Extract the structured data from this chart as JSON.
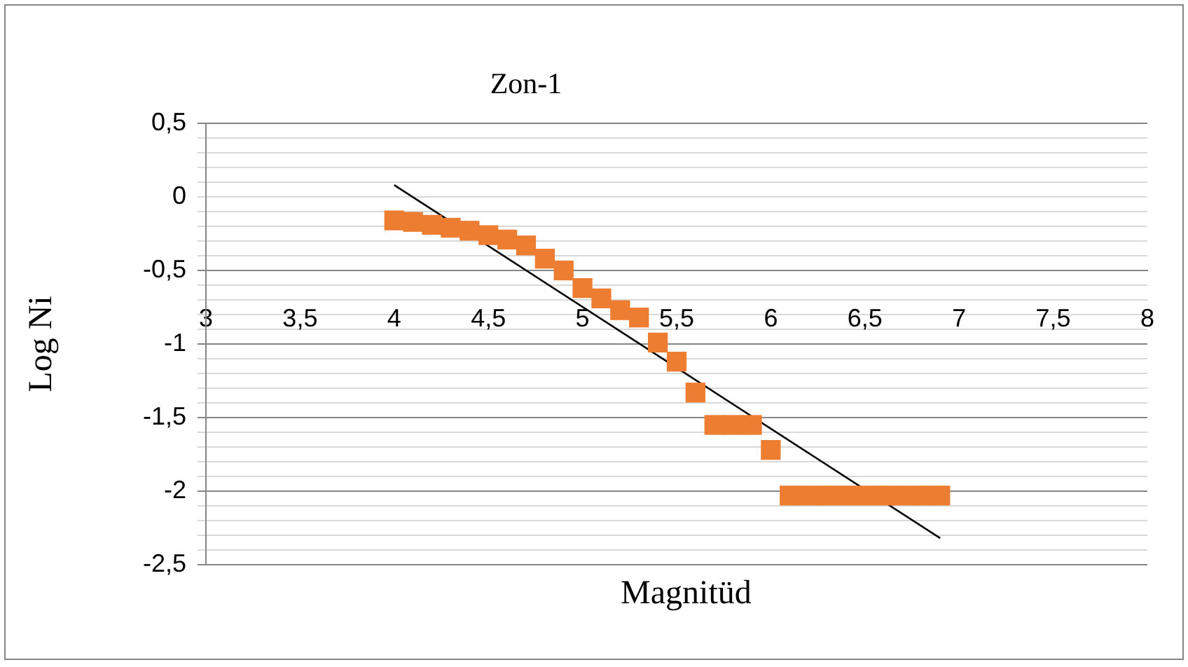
{
  "chart_data": {
    "type": "scatter",
    "title": "Zon-1",
    "xlabel": "Magnitüd",
    "ylabel": "Log Ni",
    "x": [
      4.0,
      4.1,
      4.2,
      4.3,
      4.4,
      4.5,
      4.6,
      4.7,
      4.8,
      4.9,
      5.0,
      5.1,
      5.2,
      5.3,
      5.4,
      5.5,
      5.6,
      5.7,
      5.8,
      5.9,
      6.0,
      6.1,
      6.2,
      6.3,
      6.4,
      6.5,
      6.6,
      6.7,
      6.8,
      6.9
    ],
    "series": [
      {
        "color": "#ed7d31",
        "values": [
          -0.16,
          -0.17,
          -0.19,
          -0.21,
          -0.23,
          -0.26,
          -0.29,
          -0.33,
          -0.42,
          -0.5,
          -0.62,
          -0.69,
          -0.77,
          -0.82,
          -0.99,
          -1.12,
          -1.33,
          -1.55,
          -1.55,
          -1.55,
          -1.72,
          -2.03,
          -2.03,
          -2.03,
          -2.03,
          -2.03,
          -2.03,
          -2.03,
          -2.03,
          -2.03
        ]
      },
      {
        "type": "line",
        "x": [
          4.0,
          6.9
        ],
        "values": [
          0.08,
          -2.32
        ],
        "color": "#000000",
        "marker": "none"
      }
    ],
    "xlim": [
      3,
      8
    ],
    "xticks": [
      3,
      {
        "value": 3.5,
        "label": "3,5"
      },
      4,
      {
        "value": 4.5,
        "label": "4,5"
      },
      5,
      {
        "value": 5.5,
        "label": "5,5"
      },
      6,
      {
        "value": 6.5,
        "label": "6,5"
      },
      7,
      {
        "value": 7.5,
        "label": "7,5"
      },
      8
    ],
    "ylim": [
      -2.5,
      0.5
    ],
    "yticks": [
      {
        "value": 0.5,
        "label": "0,5"
      },
      {
        "value": 0.4,
        "label": null
      },
      {
        "value": 0.3,
        "label": null
      },
      {
        "value": 0.2,
        "label": null
      },
      {
        "value": 0.1,
        "label": null
      },
      0,
      {
        "value": -0.1,
        "label": null
      },
      {
        "value": -0.2,
        "label": null
      },
      {
        "value": -0.3,
        "label": null
      },
      {
        "value": -0.4,
        "label": null
      },
      {
        "value": -0.5,
        "label": "-0,5"
      },
      {
        "value": -0.6,
        "label": null
      },
      {
        "value": -0.7,
        "label": null
      },
      {
        "value": -0.8,
        "label": null
      },
      {
        "value": -0.9,
        "label": null
      },
      -1,
      {
        "value": -1.1,
        "label": null
      },
      {
        "value": -1.2,
        "label": null
      },
      {
        "value": -1.3,
        "label": null
      },
      {
        "value": -1.4,
        "label": null
      },
      {
        "value": -1.5,
        "label": "-1,5"
      },
      {
        "value": -1.6,
        "label": null
      },
      {
        "value": -1.7,
        "label": null
      },
      {
        "value": -1.8,
        "label": null
      },
      {
        "value": -1.9,
        "label": null
      },
      -2,
      {
        "value": -2.1,
        "label": null
      },
      {
        "value": -2.2,
        "label": null
      },
      {
        "value": -2.3,
        "label": null
      },
      {
        "value": -2.4,
        "label": null
      },
      {
        "value": -2.5,
        "label": "-2,5"
      }
    ],
    "grid": "y",
    "marker": "square",
    "legend": false
  }
}
